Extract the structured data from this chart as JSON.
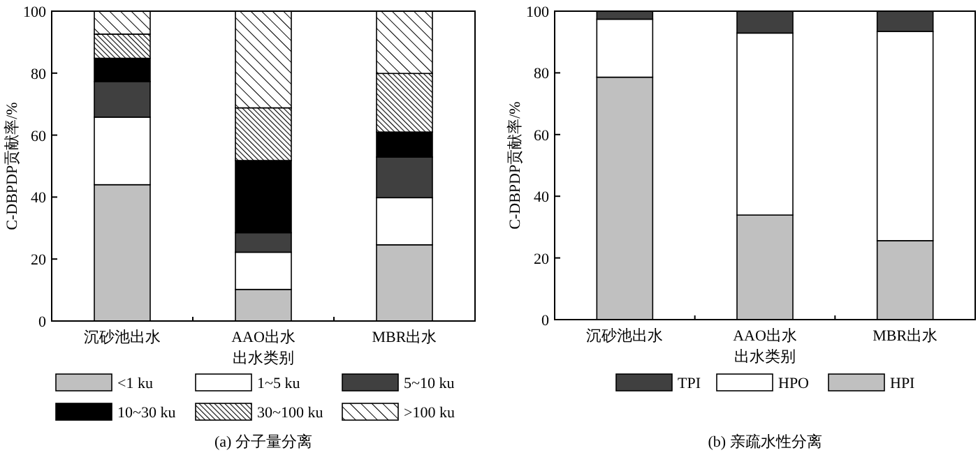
{
  "chart_data": [
    {
      "type": "bar",
      "stacked": true,
      "categories": [
        "沉砂池出水",
        "AAO出水",
        "MBR出水"
      ],
      "xlabel": "出水类别",
      "ylabel": "C-DBPDP贡献率/%",
      "subtitle": "(a)  分子量分离",
      "ylim": [
        0,
        100
      ],
      "yticks": [
        0,
        20,
        40,
        60,
        80,
        100
      ],
      "legend": "bottom",
      "series": [
        {
          "name": "<1 ku",
          "color": "#c0c0c0",
          "values": [
            44.0,
            10.2,
            24.6
          ]
        },
        {
          "name": "1~5 ku",
          "color": "#ffffff",
          "values": [
            21.8,
            12.0,
            15.2
          ]
        },
        {
          "name": "5~10 ku",
          "color": "#404040",
          "values": [
            11.5,
            6.3,
            13.1
          ]
        },
        {
          "name": "10~30 ku",
          "color": "#000000",
          "values": [
            7.5,
            23.3,
            8.1
          ]
        },
        {
          "name": "30~100 ku",
          "color": "#000000",
          "values": [
            7.8,
            17.0,
            18.9
          ]
        },
        {
          "name": ">100 ku",
          "color": "#000000",
          "values": [
            7.4,
            31.2,
            20.1
          ]
        }
      ]
    },
    {
      "type": "bar",
      "stacked": true,
      "categories": [
        "沉砂池出水",
        "AAO出水",
        "MBR出水"
      ],
      "xlabel": "出水类别",
      "ylabel": "C-DBPDP贡献率/%",
      "subtitle": "(b)  亲疏水性分离",
      "ylim": [
        0,
        100
      ],
      "yticks": [
        0,
        20,
        40,
        60,
        80,
        100
      ],
      "legend": "bottom",
      "series": [
        {
          "name": "HPI",
          "color": "#c0c0c0",
          "values": [
            78.6,
            33.9,
            25.6
          ]
        },
        {
          "name": "HPO",
          "color": "#ffffff",
          "values": [
            18.8,
            59.0,
            67.8
          ]
        },
        {
          "name": "TPI",
          "color": "#404040",
          "values": [
            2.6,
            7.1,
            6.6
          ]
        }
      ]
    }
  ]
}
